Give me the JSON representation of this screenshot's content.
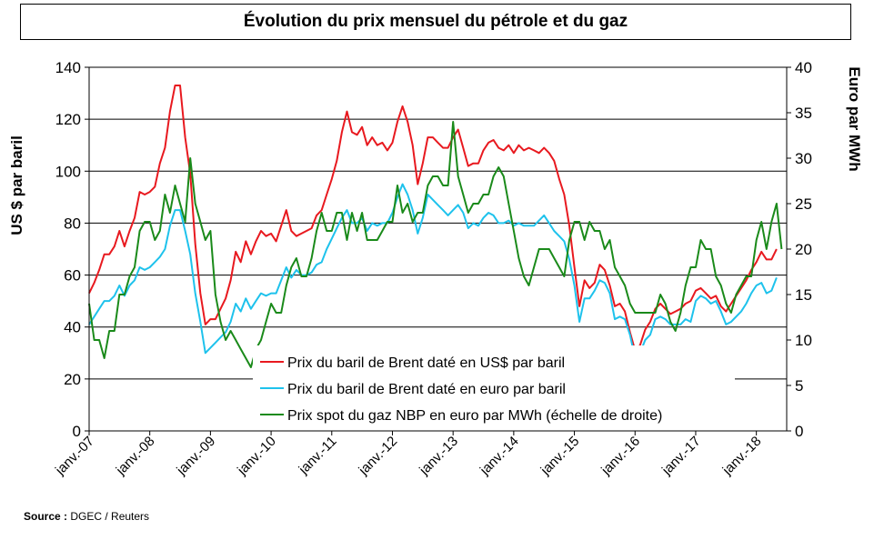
{
  "chart_data": {
    "type": "line",
    "title": "Évolution du prix mensuel du pétrole et du gaz",
    "ylabel_left": "US $ par baril",
    "ylabel_right": "Euro par MWh",
    "xlabel": "",
    "ylim_left": [
      0,
      140
    ],
    "ylim_right": [
      0,
      40
    ],
    "yticks_left": [
      0,
      20,
      40,
      60,
      80,
      100,
      120,
      140
    ],
    "yticks_right": [
      0,
      5,
      10,
      15,
      20,
      25,
      30,
      35,
      40
    ],
    "x_start_index": 0,
    "x_ticks": [
      {
        "index": 0,
        "label": "janv.-07"
      },
      {
        "index": 12,
        "label": "janv.-08"
      },
      {
        "index": 24,
        "label": "janv.-09"
      },
      {
        "index": 36,
        "label": "janv.-10"
      },
      {
        "index": 48,
        "label": "janv.-11"
      },
      {
        "index": 60,
        "label": "janv.-12"
      },
      {
        "index": 72,
        "label": "janv.-13"
      },
      {
        "index": 84,
        "label": "janv.-14"
      },
      {
        "index": 96,
        "label": "janv.-15"
      },
      {
        "index": 108,
        "label": "janv.-16"
      },
      {
        "index": 120,
        "label": "janv.-17"
      },
      {
        "index": 132,
        "label": "janv.-18"
      }
    ],
    "x_max_index": 138,
    "legend_position": "bottom-center",
    "series": [
      {
        "name": "Prix du baril de Brent daté en US$ par baril",
        "axis": "left",
        "color": "#e8191f",
        "values": [
          53,
          57,
          62,
          68,
          68,
          71,
          77,
          71,
          77,
          82,
          92,
          91,
          92,
          94,
          103,
          109,
          123,
          133,
          133,
          113,
          99,
          72,
          53,
          41,
          43,
          43,
          47,
          51,
          58,
          69,
          65,
          73,
          68,
          73,
          77,
          75,
          76,
          73,
          79,
          85,
          77,
          75,
          76,
          77,
          78,
          83,
          85,
          91,
          97,
          104,
          115,
          123,
          115,
          114,
          117,
          110,
          113,
          110,
          111,
          108,
          111,
          119,
          125,
          119,
          110,
          95,
          103,
          113,
          113,
          111,
          109,
          109,
          113,
          116,
          109,
          102,
          103,
          103,
          108,
          111,
          112,
          109,
          108,
          110,
          107,
          110,
          108,
          109,
          108,
          107,
          109,
          107,
          104,
          97,
          91,
          79,
          63,
          48,
          58,
          55,
          57,
          64,
          62,
          56,
          48,
          49,
          46,
          38,
          31,
          33,
          39,
          42,
          47,
          49,
          47,
          45,
          46,
          47,
          49,
          50,
          54,
          55,
          53,
          51,
          52,
          48,
          46,
          49,
          52,
          55,
          58,
          62,
          65,
          69,
          66,
          66,
          70
        ]
      },
      {
        "name": "Prix du baril de Brent daté en euro par baril",
        "axis": "left",
        "color": "#1ec2ec",
        "values": [
          41,
          44,
          47,
          50,
          50,
          52,
          56,
          52,
          56,
          58,
          63,
          62,
          63,
          65,
          67,
          70,
          79,
          85,
          85,
          77,
          68,
          53,
          42,
          30,
          32,
          34,
          36,
          38,
          42,
          49,
          46,
          51,
          47,
          50,
          53,
          52,
          53,
          53,
          58,
          63,
          59,
          62,
          60,
          60,
          61,
          64,
          65,
          70,
          74,
          78,
          82,
          85,
          80,
          80,
          82,
          77,
          80,
          79,
          80,
          80,
          84,
          90,
          95,
          91,
          85,
          76,
          82,
          91,
          89,
          87,
          85,
          83,
          85,
          87,
          84,
          78,
          80,
          79,
          82,
          84,
          83,
          80,
          80,
          81,
          79,
          80,
          79,
          79,
          79,
          81,
          83,
          80,
          77,
          75,
          73,
          66,
          56,
          42,
          51,
          51,
          54,
          58,
          57,
          53,
          43,
          44,
          43,
          37,
          28,
          30,
          35,
          37,
          43,
          44,
          43,
          41,
          41,
          41,
          43,
          42,
          50,
          52,
          51,
          49,
          50,
          46,
          41,
          42,
          44,
          46,
          49,
          53,
          56,
          57,
          53,
          54,
          59
        ]
      },
      {
        "name": "Prix spot du gaz NBP en euro par MWh (échelle de droite)",
        "axis": "right",
        "color": "#1a8a1a",
        "values": [
          14,
          10,
          10,
          8,
          11,
          11,
          15,
          15,
          17,
          18,
          22,
          23,
          23,
          21,
          22,
          26,
          24,
          27,
          25,
          23,
          30,
          25,
          23,
          21,
          22,
          15,
          12,
          10,
          11,
          10,
          9,
          8,
          7,
          9,
          10,
          12,
          14,
          13,
          13,
          16,
          18,
          19,
          17,
          17,
          19,
          22,
          24,
          22,
          22,
          24,
          24,
          21,
          24,
          22,
          24,
          21,
          21,
          21,
          22,
          23,
          23,
          27,
          24,
          25,
          23,
          24,
          24,
          27,
          28,
          28,
          27,
          27,
          34,
          28,
          26,
          24,
          25,
          25,
          26,
          26,
          28,
          29,
          28,
          25,
          22,
          19,
          17,
          16,
          18,
          20,
          20,
          20,
          19,
          18,
          17,
          21,
          23,
          23,
          21,
          23,
          22,
          22,
          20,
          21,
          18,
          17,
          16,
          14,
          13,
          13,
          13,
          13,
          13,
          15,
          14,
          12,
          11,
          13,
          16,
          18,
          18,
          21,
          20,
          20,
          17,
          16,
          14,
          13,
          15,
          16,
          17,
          17,
          21,
          23,
          20,
          23,
          25,
          20
        ]
      }
    ]
  },
  "source": {
    "label": "Source :",
    "text": "DGEC / Reuters"
  }
}
